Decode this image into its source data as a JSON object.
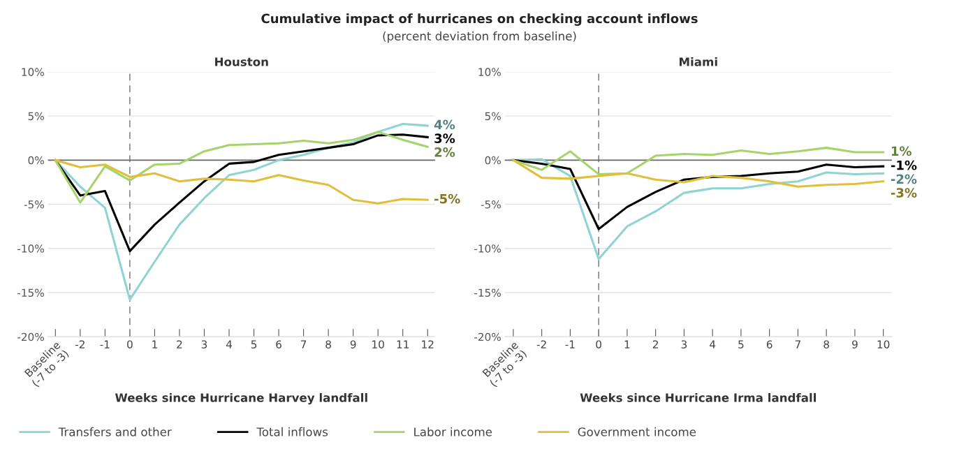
{
  "chart_data": [
    {
      "type": "line",
      "title": "Houston",
      "xlabel": "Weeks since Hurricane Harvey landfall",
      "categories": [
        "Baseline\n(-7 to -3)",
        "-2",
        "-1",
        "0",
        "1",
        "2",
        "3",
        "4",
        "5",
        "6",
        "7",
        "8",
        "9",
        "10",
        "11",
        "12"
      ],
      "series": [
        {
          "name": "Transfers and other",
          "color": "#8fd3d3",
          "values": [
            0,
            -3,
            -5.4,
            -15.8,
            -11.5,
            -7.3,
            -4.3,
            -1.7,
            -1.1,
            0,
            0.6,
            1.4,
            2.0,
            3.2,
            4.1,
            3.9
          ]
        },
        {
          "name": "Total inflows",
          "color": "#000000",
          "values": [
            0,
            -4,
            -3.5,
            -10.3,
            -7.3,
            -4.8,
            -2.4,
            -0.4,
            -0.2,
            0.6,
            1.0,
            1.4,
            1.8,
            2.8,
            2.9,
            2.6
          ]
        },
        {
          "name": "Labor income",
          "color": "#a6d46a",
          "values": [
            0,
            -4.8,
            -0.7,
            -2.3,
            -0.5,
            -0.4,
            1.0,
            1.7,
            1.8,
            1.9,
            2.2,
            1.9,
            2.3,
            3.2,
            2.3,
            1.5
          ]
        },
        {
          "name": "Government income",
          "color": "#e0bf3a",
          "values": [
            0,
            -0.8,
            -0.5,
            -1.9,
            -1.5,
            -2.4,
            -2.1,
            -2.2,
            -2.4,
            -1.7,
            -2.3,
            -2.8,
            -4.5,
            -4.9,
            -4.4,
            -4.5
          ]
        }
      ],
      "ylim": [
        -20,
        10
      ],
      "yticks": [
        {
          "value": -20,
          "label": "-20%"
        },
        {
          "value": -15,
          "label": "-15%"
        },
        {
          "value": -10,
          "label": "-10%"
        },
        {
          "value": -5,
          "label": "-5%"
        },
        {
          "value": 0,
          "label": "0%"
        },
        {
          "value": 5,
          "label": "5%"
        },
        {
          "value": 10,
          "label": "10%"
        }
      ],
      "ref_lines": [
        {
          "axis": "x",
          "value": "0",
          "color": "#888888",
          "line_style": "dashed"
        },
        {
          "axis": "y",
          "value": 0,
          "color": "#666666",
          "line_style": "solid"
        }
      ],
      "grid": "y",
      "legend": "bottom",
      "annotations": [
        "Cumulative impact of hurricanes on checking account inflows",
        "(percent deviation from baseline)",
        {
          "text": "4%",
          "x": "12",
          "y": 3.9
        },
        {
          "text": "3%",
          "x": "12",
          "y": 2.6
        },
        {
          "text": "2%",
          "x": "12",
          "y": 1.5
        },
        {
          "text": "-5%",
          "x": "12",
          "y": -4.5
        }
      ]
    },
    {
      "type": "line",
      "title": "Miami",
      "xlabel": "Weeks since Hurricane Irma landfall",
      "categories": [
        "Baseline\n(-7 to -3)",
        "-2",
        "-1",
        "0",
        "1",
        "2",
        "3",
        "4",
        "5",
        "6",
        "7",
        "8",
        "9",
        "10"
      ],
      "series": [
        {
          "name": "Transfers and other",
          "color": "#8fd3d3",
          "values": [
            0,
            0.1,
            -1.8,
            -11.2,
            -7.5,
            -5.8,
            -3.7,
            -3.2,
            -3.2,
            -2.7,
            -2.4,
            -1.4,
            -1.6,
            -1.5
          ]
        },
        {
          "name": "Total inflows",
          "color": "#000000",
          "values": [
            0,
            -0.4,
            -1.0,
            -7.8,
            -5.3,
            -3.6,
            -2.2,
            -1.9,
            -1.8,
            -1.5,
            -1.3,
            -0.5,
            -0.8,
            -0.7
          ]
        },
        {
          "name": "Labor income",
          "color": "#a6d46a",
          "values": [
            0,
            -1.1,
            1.0,
            -1.6,
            -1.5,
            0.5,
            0.7,
            0.6,
            1.1,
            0.7,
            1.0,
            1.4,
            0.9,
            0.9
          ]
        },
        {
          "name": "Government income",
          "color": "#e0bf3a",
          "values": [
            0,
            -2.0,
            -2.1,
            -1.8,
            -1.5,
            -2.2,
            -2.5,
            -1.8,
            -2.0,
            -2.4,
            -3.0,
            -2.8,
            -2.7,
            -2.4
          ]
        }
      ],
      "ylim": [
        -20,
        10
      ],
      "yticks": [
        {
          "value": -20,
          "label": "-20%"
        },
        {
          "value": -15,
          "label": "-15%"
        },
        {
          "value": -10,
          "label": "-10%"
        },
        {
          "value": -5,
          "label": "-5%"
        },
        {
          "value": 0,
          "label": "0%"
        },
        {
          "value": 5,
          "label": "5%"
        },
        {
          "value": 10,
          "label": "10%"
        }
      ],
      "ref_lines": [
        {
          "axis": "x",
          "value": "0",
          "color": "#888888",
          "line_style": "dashed"
        },
        {
          "axis": "y",
          "value": 0,
          "color": "#666666",
          "line_style": "solid"
        }
      ],
      "grid": "y",
      "legend": "bottom",
      "annotations": [
        {
          "text": "1%",
          "x": "10",
          "y": 0.9
        },
        {
          "text": "-1%",
          "x": "10",
          "y": -0.7
        },
        {
          "text": "-2%",
          "x": "10",
          "y": -1.5
        },
        {
          "text": "-3%",
          "x": "10",
          "y": -2.4
        }
      ]
    }
  ]
}
